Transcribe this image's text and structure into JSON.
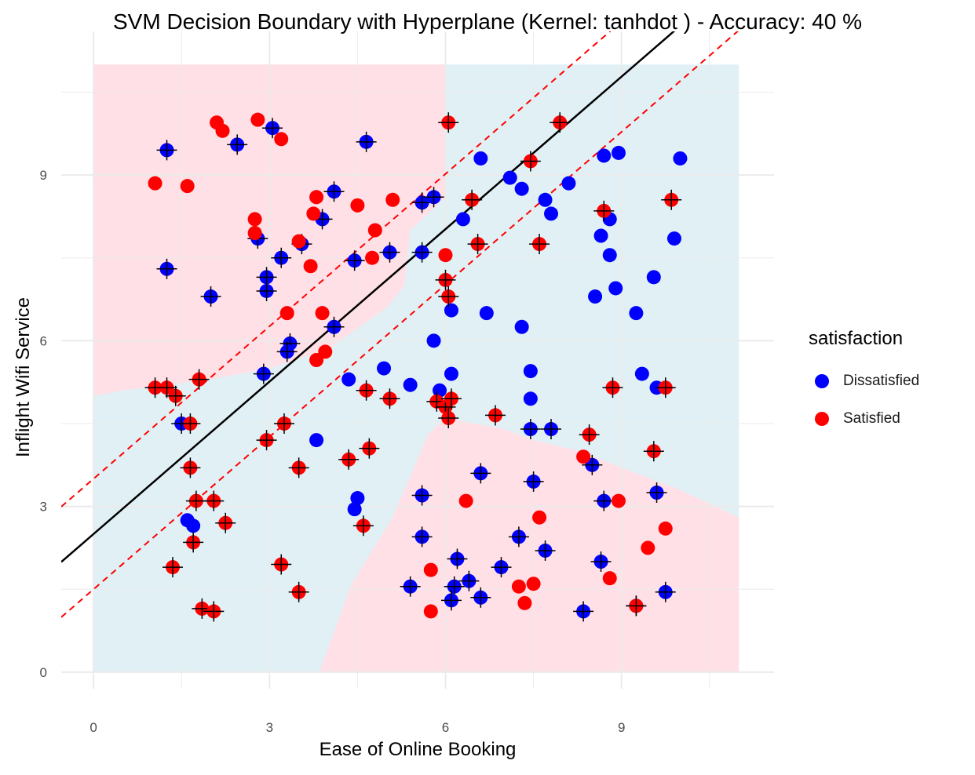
{
  "chart_data": {
    "type": "scatter",
    "title": "SVM Decision Boundary with Hyperplane (Kernel: tanhdot ) - Accuracy: 40 %",
    "xlabel": "Ease of Online Booking",
    "ylabel": "Inflight Wifi Service",
    "xlim": [
      -0.55,
      11.6
    ],
    "ylim": [
      -0.3,
      11.6
    ],
    "x_ticks": [
      0,
      3,
      6,
      9
    ],
    "y_ticks": [
      0,
      3,
      6,
      9
    ],
    "grid": true,
    "legend": {
      "title": "satisfaction",
      "position": "right",
      "entries": [
        {
          "label": "Dissatisfied",
          "color": "#0000ff"
        },
        {
          "label": "Satisfied",
          "color": "#ff0000"
        }
      ]
    },
    "region_colors": {
      "Satisfied": "#ffe0e6",
      "Dissatisfied": "#e0f0f5"
    },
    "hyperplane": {
      "slope": 0.92,
      "intercept": 2.5,
      "color": "#000000",
      "style": "solid"
    },
    "margins": [
      {
        "slope": 0.92,
        "intercept": 3.5,
        "color": "#ff0000",
        "style": "dashed"
      },
      {
        "slope": 0.92,
        "intercept": 1.5,
        "color": "#ff0000",
        "style": "dashed"
      }
    ],
    "decision_regions": {
      "Satisfied": [
        [
          [
            0,
            5.0
          ],
          [
            0.5,
            5.1
          ],
          [
            2.0,
            5.3
          ],
          [
            3.0,
            5.5
          ],
          [
            4.0,
            5.85
          ],
          [
            5.0,
            6.6
          ],
          [
            5.3,
            7.0
          ],
          [
            5.4,
            8.0
          ],
          [
            6.0,
            8.6
          ],
          [
            6.0,
            11.0
          ],
          [
            0,
            11.0
          ]
        ],
        [
          [
            3.85,
            0
          ],
          [
            4.4,
            1.6
          ],
          [
            5.1,
            2.8
          ],
          [
            5.7,
            4.3
          ],
          [
            6.0,
            4.6
          ],
          [
            7.0,
            4.4
          ],
          [
            7.5,
            4.2
          ],
          [
            8.3,
            4.0
          ],
          [
            9.0,
            3.7
          ],
          [
            10.0,
            3.3
          ],
          [
            11.0,
            2.8
          ],
          [
            11.0,
            0
          ]
        ]
      ]
    },
    "series": [
      {
        "name": "Dissatisfied",
        "color": "#0000ff",
        "points": [
          [
            1.25,
            9.45,
            1
          ],
          [
            2.45,
            9.55,
            1
          ],
          [
            3.05,
            9.85,
            1
          ],
          [
            4.65,
            9.6,
            1
          ],
          [
            4.1,
            8.7,
            1
          ],
          [
            3.9,
            8.2,
            1
          ],
          [
            2.8,
            7.85,
            1
          ],
          [
            3.55,
            7.75,
            1
          ],
          [
            3.2,
            7.5,
            1
          ],
          [
            4.45,
            7.45,
            1
          ],
          [
            5.05,
            7.6,
            1
          ],
          [
            5.6,
            7.6,
            1
          ],
          [
            5.6,
            8.5,
            1
          ],
          [
            5.8,
            8.6,
            1
          ],
          [
            1.25,
            7.3,
            1
          ],
          [
            2.0,
            6.8,
            1
          ],
          [
            2.95,
            7.15,
            1
          ],
          [
            2.95,
            6.9,
            1
          ],
          [
            4.1,
            6.25,
            1
          ],
          [
            3.35,
            5.95,
            1
          ],
          [
            3.3,
            5.8,
            1
          ],
          [
            2.9,
            5.4,
            1
          ],
          [
            6.6,
            9.3,
            0
          ],
          [
            7.1,
            8.95,
            0
          ],
          [
            7.3,
            8.75,
            0
          ],
          [
            7.7,
            8.55,
            0
          ],
          [
            8.1,
            8.85,
            0
          ],
          [
            6.3,
            8.2,
            0
          ],
          [
            7.8,
            8.3,
            0
          ],
          [
            8.7,
            9.35,
            0
          ],
          [
            8.95,
            9.4,
            0
          ],
          [
            10.0,
            9.3,
            0
          ],
          [
            8.8,
            8.2,
            0
          ],
          [
            8.65,
            7.9,
            0
          ],
          [
            9.9,
            7.85,
            0
          ],
          [
            8.8,
            7.55,
            0
          ],
          [
            6.1,
            6.55,
            0
          ],
          [
            6.7,
            6.5,
            0
          ],
          [
            8.9,
            6.95,
            0
          ],
          [
            8.55,
            6.8,
            0
          ],
          [
            9.55,
            7.15,
            0
          ],
          [
            9.25,
            6.5,
            0
          ],
          [
            7.3,
            6.25,
            0
          ],
          [
            5.8,
            6.0,
            0
          ],
          [
            4.35,
            5.3,
            0
          ],
          [
            4.95,
            5.5,
            0
          ],
          [
            5.4,
            5.2,
            0
          ],
          [
            5.9,
            5.1,
            0
          ],
          [
            6.1,
            5.4,
            0
          ],
          [
            7.45,
            5.45,
            0
          ],
          [
            7.45,
            4.95,
            0
          ],
          [
            9.35,
            5.4,
            0
          ],
          [
            9.6,
            5.15,
            0
          ],
          [
            1.5,
            4.5,
            1
          ],
          [
            3.8,
            4.2,
            0
          ],
          [
            7.45,
            4.4,
            1
          ],
          [
            7.8,
            4.4,
            1
          ],
          [
            8.5,
            3.75,
            1
          ],
          [
            6.6,
            3.6,
            1
          ],
          [
            7.5,
            3.45,
            1
          ],
          [
            4.5,
            3.15,
            0
          ],
          [
            4.45,
            2.95,
            0
          ],
          [
            5.6,
            3.2,
            1
          ],
          [
            8.7,
            3.1,
            1
          ],
          [
            9.6,
            3.25,
            1
          ],
          [
            1.6,
            2.75,
            0
          ],
          [
            1.7,
            2.65,
            0
          ],
          [
            7.25,
            2.45,
            1
          ],
          [
            5.6,
            2.45,
            1
          ],
          [
            7.7,
            2.2,
            1
          ],
          [
            6.2,
            2.05,
            1
          ],
          [
            6.95,
            1.9,
            1
          ],
          [
            8.65,
            2.0,
            1
          ],
          [
            6.4,
            1.65,
            1
          ],
          [
            6.15,
            1.55,
            1
          ],
          [
            5.4,
            1.55,
            1
          ],
          [
            6.6,
            1.35,
            1
          ],
          [
            6.1,
            1.3,
            1
          ],
          [
            8.35,
            1.1,
            1
          ],
          [
            9.25,
            1.2,
            1
          ],
          [
            9.75,
            1.45,
            1
          ]
        ]
      },
      {
        "name": "Satisfied",
        "color": "#ff0000",
        "points": [
          [
            2.1,
            9.95,
            0
          ],
          [
            2.2,
            9.8,
            0
          ],
          [
            2.8,
            10.0,
            0
          ],
          [
            3.2,
            9.65,
            0
          ],
          [
            6.05,
            9.95,
            1
          ],
          [
            7.95,
            9.95,
            1
          ],
          [
            7.45,
            9.25,
            1
          ],
          [
            1.05,
            8.85,
            0
          ],
          [
            1.6,
            8.8,
            0
          ],
          [
            3.8,
            8.6,
            0
          ],
          [
            4.5,
            8.45,
            0
          ],
          [
            5.1,
            8.55,
            0
          ],
          [
            6.45,
            8.55,
            1
          ],
          [
            3.75,
            8.3,
            0
          ],
          [
            2.75,
            8.2,
            0
          ],
          [
            4.8,
            8.0,
            0
          ],
          [
            2.75,
            7.95,
            0
          ],
          [
            8.7,
            8.35,
            1
          ],
          [
            9.85,
            8.55,
            1
          ],
          [
            3.5,
            7.8,
            0
          ],
          [
            4.75,
            7.5,
            0
          ],
          [
            6.0,
            7.55,
            0
          ],
          [
            6.55,
            7.75,
            1
          ],
          [
            7.6,
            7.75,
            1
          ],
          [
            3.7,
            7.35,
            0
          ],
          [
            6.0,
            7.1,
            1
          ],
          [
            6.05,
            6.8,
            1
          ],
          [
            3.3,
            6.5,
            0
          ],
          [
            3.9,
            6.5,
            0
          ],
          [
            3.95,
            5.8,
            0
          ],
          [
            3.8,
            5.65,
            0
          ],
          [
            1.05,
            5.15,
            1
          ],
          [
            1.25,
            5.15,
            1
          ],
          [
            1.4,
            5.0,
            1
          ],
          [
            1.8,
            5.3,
            1
          ],
          [
            4.65,
            5.1,
            1
          ],
          [
            5.05,
            4.95,
            1
          ],
          [
            5.85,
            4.9,
            1
          ],
          [
            6.0,
            4.8,
            1
          ],
          [
            6.1,
            4.95,
            1
          ],
          [
            6.05,
            4.6,
            1
          ],
          [
            6.85,
            4.65,
            1
          ],
          [
            8.85,
            5.15,
            1
          ],
          [
            9.75,
            5.15,
            1
          ],
          [
            1.65,
            4.5,
            1
          ],
          [
            3.25,
            4.5,
            1
          ],
          [
            2.95,
            4.2,
            1
          ],
          [
            8.45,
            4.3,
            1
          ],
          [
            4.7,
            4.05,
            1
          ],
          [
            9.55,
            4.0,
            1
          ],
          [
            4.35,
            3.85,
            1
          ],
          [
            8.35,
            3.9,
            0
          ],
          [
            1.65,
            3.7,
            1
          ],
          [
            3.5,
            3.7,
            1
          ],
          [
            1.75,
            3.1,
            1
          ],
          [
            2.05,
            3.1,
            1
          ],
          [
            6.35,
            3.1,
            0
          ],
          [
            8.95,
            3.1,
            0
          ],
          [
            2.25,
            2.7,
            1
          ],
          [
            4.6,
            2.65,
            1
          ],
          [
            7.6,
            2.8,
            0
          ],
          [
            9.75,
            2.6,
            0
          ],
          [
            1.7,
            2.35,
            1
          ],
          [
            9.45,
            2.25,
            0
          ],
          [
            1.35,
            1.9,
            1
          ],
          [
            3.2,
            1.95,
            1
          ],
          [
            5.75,
            1.85,
            0
          ],
          [
            8.8,
            1.7,
            0
          ],
          [
            7.25,
            1.55,
            0
          ],
          [
            7.5,
            1.6,
            0
          ],
          [
            3.5,
            1.45,
            1
          ],
          [
            7.35,
            1.25,
            0
          ],
          [
            9.25,
            1.2,
            1
          ],
          [
            1.85,
            1.15,
            1
          ],
          [
            2.05,
            1.1,
            1
          ],
          [
            5.75,
            1.1,
            0
          ]
        ]
      }
    ]
  }
}
